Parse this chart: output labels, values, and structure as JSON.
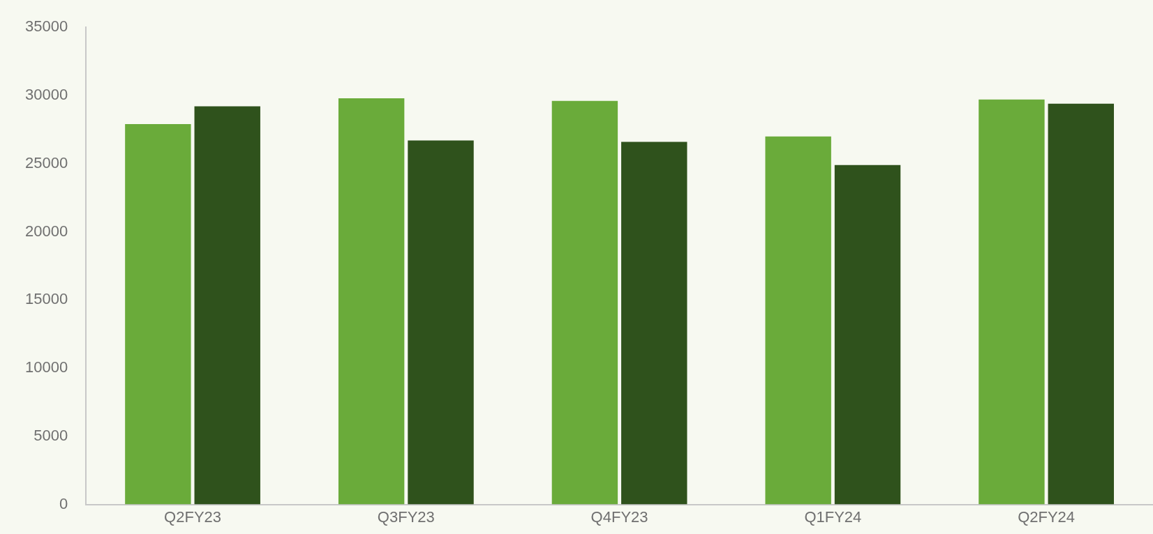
{
  "chart_data": {
    "type": "bar",
    "categories": [
      "Q2FY23",
      "Q3FY23",
      "Q4FY23",
      "Q1FY24",
      "Q2FY24"
    ],
    "series": [
      {
        "color": "#6aab3a",
        "values": [
          27900,
          29800,
          29600,
          27000,
          29700
        ]
      },
      {
        "color": "#2f521c",
        "values": [
          29200,
          26700,
          26600,
          24900,
          29400
        ]
      }
    ],
    "ylim": [
      0,
      35000
    ],
    "yticks": [
      0,
      5000,
      10000,
      15000,
      20000,
      25000,
      30000,
      35000
    ],
    "grid": false,
    "legend": false
  }
}
